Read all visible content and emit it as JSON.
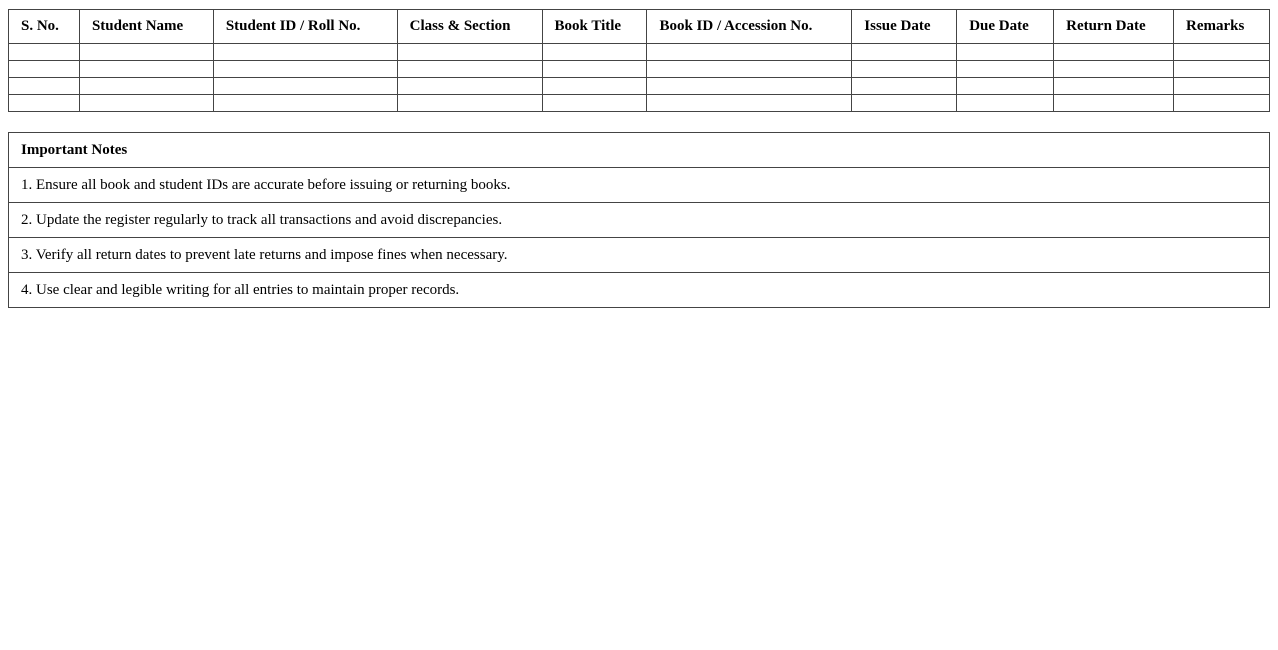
{
  "register": {
    "columns": [
      "S. No.",
      "Student Name",
      "Student ID / Roll No.",
      "Class & Section",
      "Book Title",
      "Book ID / Accession No.",
      "Issue Date",
      "Due Date",
      "Return Date",
      "Remarks"
    ],
    "empty_rows": 4
  },
  "notes": {
    "title": "Important Notes",
    "items": [
      "1. Ensure all book and student IDs are accurate before issuing or returning books.",
      "2. Update the register regularly to track all transactions and avoid discrepancies.",
      "3. Verify all return dates to prevent late returns and impose fines when necessary.",
      "4. Use clear and legible writing for all entries to maintain proper records."
    ]
  }
}
